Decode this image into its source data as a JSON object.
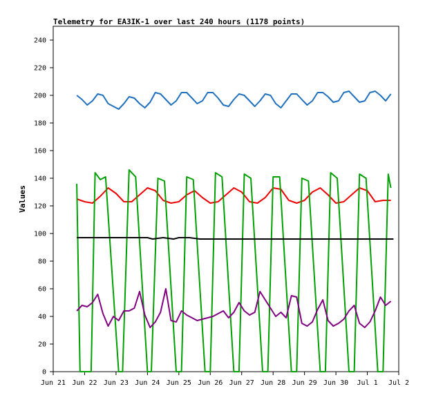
{
  "chart_data": {
    "type": "line",
    "title": "Telemetry for EA3IK-1 over last 240 hours (1178 points)",
    "xlabel": "",
    "ylabel": "Values",
    "ylim": [
      0,
      250
    ],
    "yticks": [
      0,
      20,
      40,
      60,
      80,
      100,
      120,
      140,
      160,
      180,
      200,
      220,
      240
    ],
    "xlim": [
      "2025-06-21",
      "2025-07-02"
    ],
    "xticks": [
      "Jun 21",
      "Jun 22",
      "Jun 23",
      "Jun 24",
      "Jun 25",
      "Jun 26",
      "Jun 27",
      "Jun 28",
      "Jun 29",
      "Jun 30",
      "Jul 1",
      "Jul 2"
    ],
    "grid": false,
    "legend": "none",
    "series": [
      {
        "color": "#1f6fbf",
        "x": [
          "2025-06-21T18:00",
          "2025-06-21T22:00",
          "2025-06-22T02:00",
          "2025-06-22T06:00",
          "2025-06-22T10:00",
          "2025-06-22T14:00",
          "2025-06-22T18:00",
          "2025-06-22T22:00",
          "2025-06-23T02:00",
          "2025-06-23T06:00",
          "2025-06-23T10:00",
          "2025-06-23T14:00",
          "2025-06-23T18:00",
          "2025-06-23T22:00",
          "2025-06-24T02:00",
          "2025-06-24T06:00",
          "2025-06-24T10:00",
          "2025-06-24T14:00",
          "2025-06-24T18:00",
          "2025-06-24T22:00",
          "2025-06-25T02:00",
          "2025-06-25T06:00",
          "2025-06-25T10:00",
          "2025-06-25T14:00",
          "2025-06-25T18:00",
          "2025-06-25T22:00",
          "2025-06-26T02:00",
          "2025-06-26T06:00",
          "2025-06-26T10:00",
          "2025-06-26T14:00",
          "2025-06-26T18:00",
          "2025-06-26T22:00",
          "2025-06-27T02:00",
          "2025-06-27T06:00",
          "2025-06-27T10:00",
          "2025-06-27T14:00",
          "2025-06-27T18:00",
          "2025-06-27T22:00",
          "2025-06-28T02:00",
          "2025-06-28T06:00",
          "2025-06-28T10:00",
          "2025-06-28T14:00",
          "2025-06-28T18:00",
          "2025-06-28T22:00",
          "2025-06-29T02:00",
          "2025-06-29T06:00",
          "2025-06-29T10:00",
          "2025-06-29T14:00",
          "2025-06-29T18:00",
          "2025-06-29T22:00",
          "2025-06-30T02:00",
          "2025-06-30T06:00",
          "2025-06-30T10:00",
          "2025-06-30T14:00",
          "2025-06-30T18:00",
          "2025-06-30T22:00",
          "2025-07-01T02:00",
          "2025-07-01T06:00",
          "2025-07-01T10:00",
          "2025-07-01T14:00",
          "2025-07-01T18:00"
        ],
        "y": [
          200,
          197,
          193,
          196,
          201,
          200,
          194,
          192,
          190,
          194,
          199,
          198,
          194,
          191,
          195,
          202,
          201,
          197,
          193,
          196,
          202,
          202,
          198,
          194,
          196,
          202,
          202,
          198,
          193,
          192,
          197,
          201,
          200,
          196,
          192,
          196,
          201,
          200,
          194,
          191,
          196,
          201,
          201,
          197,
          193,
          196,
          202,
          202,
          199,
          195,
          196,
          202,
          203,
          199,
          195,
          196,
          202,
          203,
          200,
          196,
          201
        ]
      },
      {
        "color": "#ee0000",
        "x": [
          "2025-06-21T18:00",
          "2025-06-22T00:00",
          "2025-06-22T06:00",
          "2025-06-22T12:00",
          "2025-06-22T18:00",
          "2025-06-23T00:00",
          "2025-06-23T06:00",
          "2025-06-23T12:00",
          "2025-06-23T18:00",
          "2025-06-24T00:00",
          "2025-06-24T06:00",
          "2025-06-24T12:00",
          "2025-06-24T18:00",
          "2025-06-25T00:00",
          "2025-06-25T06:00",
          "2025-06-25T12:00",
          "2025-06-25T18:00",
          "2025-06-26T00:00",
          "2025-06-26T06:00",
          "2025-06-26T12:00",
          "2025-06-26T18:00",
          "2025-06-27T00:00",
          "2025-06-27T06:00",
          "2025-06-27T12:00",
          "2025-06-27T18:00",
          "2025-06-28T00:00",
          "2025-06-28T06:00",
          "2025-06-28T12:00",
          "2025-06-28T18:00",
          "2025-06-29T00:00",
          "2025-06-29T06:00",
          "2025-06-29T12:00",
          "2025-06-29T18:00",
          "2025-06-30T00:00",
          "2025-06-30T06:00",
          "2025-06-30T12:00",
          "2025-06-30T18:00",
          "2025-07-01T00:00",
          "2025-07-01T06:00",
          "2025-07-01T12:00",
          "2025-07-01T18:00"
        ],
        "y": [
          125,
          123,
          122,
          127,
          133,
          129,
          123,
          123,
          128,
          133,
          131,
          124,
          122,
          123,
          128,
          131,
          126,
          122,
          123,
          128,
          133,
          130,
          123,
          122,
          126,
          133,
          132,
          124,
          122,
          124,
          130,
          133,
          128,
          122,
          123,
          128,
          133,
          131,
          123,
          124,
          124
        ]
      },
      {
        "color": "#00a000",
        "x": [
          "2025-06-21T18:00",
          "2025-06-21T20:30",
          "2025-06-22T05:00",
          "2025-06-22T08:00",
          "2025-06-22T12:00",
          "2025-06-22T16:00",
          "2025-06-23T02:00",
          "2025-06-23T05:00",
          "2025-06-23T10:00",
          "2025-06-23T15:00",
          "2025-06-24T00:00",
          "2025-06-24T03:00",
          "2025-06-24T08:00",
          "2025-06-24T13:00",
          "2025-06-24T22:00",
          "2025-06-25T02:00",
          "2025-06-25T06:00",
          "2025-06-25T11:00",
          "2025-06-25T20:00",
          "2025-06-26T00:00",
          "2025-06-26T04:00",
          "2025-06-26T09:00",
          "2025-06-26T18:00",
          "2025-06-26T22:00",
          "2025-06-27T02:00",
          "2025-06-27T07:00",
          "2025-06-27T16:00",
          "2025-06-27T20:00",
          "2025-06-28T00:00",
          "2025-06-28T05:00",
          "2025-06-28T14:00",
          "2025-06-28T18:00",
          "2025-06-28T22:00",
          "2025-06-29T03:00",
          "2025-06-29T12:00",
          "2025-06-29T16:00",
          "2025-06-29T20:00",
          "2025-06-30T01:00",
          "2025-06-30T10:00",
          "2025-06-30T14:00",
          "2025-06-30T18:00",
          "2025-06-30T23:00",
          "2025-07-01T08:00",
          "2025-07-01T12:00",
          "2025-07-01T16:00",
          "2025-07-01T18:00"
        ],
        "y": [
          136,
          0,
          0,
          144,
          139,
          141,
          0,
          0,
          146,
          141,
          0,
          0,
          140,
          138,
          0,
          0,
          141,
          139,
          0,
          0,
          144,
          141,
          0,
          0,
          143,
          140,
          0,
          0,
          141,
          141,
          0,
          0,
          140,
          138,
          0,
          0,
          144,
          140,
          0,
          0,
          143,
          140,
          0,
          0,
          143,
          133
        ]
      },
      {
        "color": "#000000",
        "x": [
          "2025-06-21T18:00",
          "2025-06-23T12:00",
          "2025-06-24T00:00",
          "2025-06-24T04:00",
          "2025-06-24T12:00",
          "2025-06-24T20:00",
          "2025-06-25T00:00",
          "2025-06-25T08:00",
          "2025-06-25T16:00",
          "2025-06-26T00:00",
          "2025-06-28T00:00",
          "2025-06-30T00:00",
          "2025-07-01T20:00"
        ],
        "y": [
          97,
          97,
          97,
          96,
          97,
          96,
          97,
          97,
          96,
          96,
          96,
          96,
          96
        ]
      },
      {
        "color": "#800080",
        "x": [
          "2025-06-21T18:00",
          "2025-06-21T22:00",
          "2025-06-22T02:00",
          "2025-06-22T06:00",
          "2025-06-22T10:00",
          "2025-06-22T14:00",
          "2025-06-22T18:00",
          "2025-06-22T22:00",
          "2025-06-23T02:00",
          "2025-06-23T06:00",
          "2025-06-23T10:00",
          "2025-06-23T14:00",
          "2025-06-23T18:00",
          "2025-06-23T22:00",
          "2025-06-24T02:00",
          "2025-06-24T06:00",
          "2025-06-24T10:00",
          "2025-06-24T14:00",
          "2025-06-24T18:00",
          "2025-06-24T22:00",
          "2025-06-25T02:00",
          "2025-06-25T06:00",
          "2025-06-25T10:00",
          "2025-06-25T14:00",
          "2025-06-25T18:00",
          "2025-06-25T22:00",
          "2025-06-26T02:00",
          "2025-06-26T06:00",
          "2025-06-26T10:00",
          "2025-06-26T14:00",
          "2025-06-26T18:00",
          "2025-06-26T22:00",
          "2025-06-27T02:00",
          "2025-06-27T06:00",
          "2025-06-27T10:00",
          "2025-06-27T14:00",
          "2025-06-27T18:00",
          "2025-06-27T22:00",
          "2025-06-28T02:00",
          "2025-06-28T06:00",
          "2025-06-28T10:00",
          "2025-06-28T14:00",
          "2025-06-28T18:00",
          "2025-06-28T22:00",
          "2025-06-29T02:00",
          "2025-06-29T06:00",
          "2025-06-29T10:00",
          "2025-06-29T14:00",
          "2025-06-29T18:00",
          "2025-06-29T22:00",
          "2025-06-30T02:00",
          "2025-06-30T06:00",
          "2025-06-30T10:00",
          "2025-06-30T14:00",
          "2025-06-30T18:00",
          "2025-06-30T22:00",
          "2025-07-01T02:00",
          "2025-07-01T06:00",
          "2025-07-01T10:00",
          "2025-07-01T14:00",
          "2025-07-01T18:00"
        ],
        "y": [
          44,
          48,
          47,
          50,
          56,
          42,
          33,
          40,
          37,
          44,
          44,
          46,
          58,
          41,
          32,
          36,
          43,
          60,
          37,
          36,
          44,
          41,
          39,
          37,
          38,
          39,
          40,
          42,
          44,
          39,
          43,
          50,
          44,
          41,
          43,
          58,
          52,
          46,
          40,
          43,
          39,
          55,
          54,
          35,
          33,
          36,
          45,
          52,
          37,
          33,
          35,
          38,
          44,
          48,
          35,
          32,
          36,
          44,
          54,
          48,
          51
        ]
      }
    ]
  }
}
